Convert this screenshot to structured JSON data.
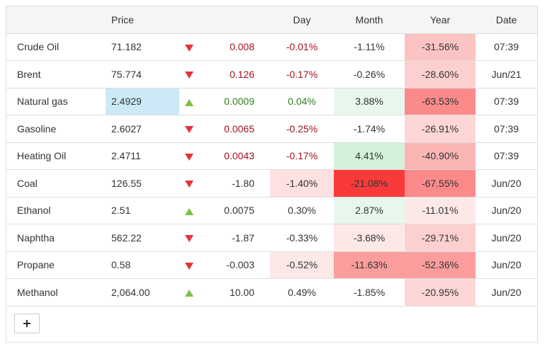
{
  "columns": {
    "name": "",
    "price": "Price",
    "day": "Day",
    "month": "Month",
    "year": "Year",
    "date": "Date"
  },
  "rows": [
    {
      "name": "Crude Oil",
      "price": "71.182",
      "price_bg": "",
      "direction": "down",
      "change": "0.008",
      "change_color": "#a3111b",
      "day": "-0.01%",
      "day_bg": "",
      "day_color": "#a3111b",
      "month": "-1.11%",
      "month_bg": "",
      "month_color": "#333333",
      "year": "-31.56%",
      "year_bg": "#fcc3c3",
      "date": "07:39"
    },
    {
      "name": "Brent",
      "price": "75.774",
      "price_bg": "",
      "direction": "down",
      "change": "0.126",
      "change_color": "#a3111b",
      "day": "-0.17%",
      "day_bg": "",
      "day_color": "#a3111b",
      "month": "-0.26%",
      "month_bg": "",
      "month_color": "#333333",
      "year": "-28.60%",
      "year_bg": "#fdd0d0",
      "date": "Jun/21"
    },
    {
      "name": "Natural gas",
      "price": "2.4929",
      "price_bg": "#cde8f6",
      "direction": "up",
      "change": "0.0009",
      "change_color": "#2e7d1e",
      "day": "0.04%",
      "day_bg": "",
      "day_color": "#2e7d1e",
      "month": "3.88%",
      "month_bg": "#e8f7eb",
      "month_color": "#333333",
      "year": "-63.53%",
      "year_bg": "#fb8b8b",
      "date": "07:39"
    },
    {
      "name": "Gasoline",
      "price": "2.6027",
      "price_bg": "",
      "direction": "down",
      "change": "0.0065",
      "change_color": "#a3111b",
      "day": "-0.25%",
      "day_bg": "",
      "day_color": "#a3111b",
      "month": "-1.74%",
      "month_bg": "",
      "month_color": "#333333",
      "year": "-26.91%",
      "year_bg": "#fdd6d6",
      "date": "07:39"
    },
    {
      "name": "Heating Oil",
      "price": "2.4711",
      "price_bg": "",
      "direction": "down",
      "change": "0.0043",
      "change_color": "#a3111b",
      "day": "-0.17%",
      "day_bg": "",
      "day_color": "#a3111b",
      "month": "4.41%",
      "month_bg": "#d4f2da",
      "month_color": "#333333",
      "year": "-40.90%",
      "year_bg": "#fcb5b5",
      "date": "07:39"
    },
    {
      "name": "Coal",
      "price": "126.55",
      "price_bg": "",
      "direction": "down",
      "change": "-1.80",
      "change_color": "#333333",
      "day": "-1.40%",
      "day_bg": "#fde0e0",
      "day_color": "#333333",
      "month": "-21.08%",
      "month_bg": "#fa3a3a",
      "month_color": "#333333",
      "year": "-67.55%",
      "year_bg": "#fb8b8b",
      "date": "Jun/20"
    },
    {
      "name": "Ethanol",
      "price": "2.51",
      "price_bg": "",
      "direction": "up",
      "change": "0.0075",
      "change_color": "#333333",
      "day": "0.30%",
      "day_bg": "",
      "day_color": "#333333",
      "month": "2.87%",
      "month_bg": "#e8f7eb",
      "month_color": "#333333",
      "year": "-11.01%",
      "year_bg": "#fde8e8",
      "date": "Jun/20"
    },
    {
      "name": "Naphtha",
      "price": "562.22",
      "price_bg": "",
      "direction": "down",
      "change": "-1.87",
      "change_color": "#333333",
      "day": "-0.33%",
      "day_bg": "",
      "day_color": "#333333",
      "month": "-3.68%",
      "month_bg": "#fde8e8",
      "month_color": "#333333",
      "year": "-29.71%",
      "year_bg": "#fdd0d0",
      "date": "Jun/20"
    },
    {
      "name": "Propane",
      "price": "0.58",
      "price_bg": "",
      "direction": "down",
      "change": "-0.003",
      "change_color": "#333333",
      "day": "-0.52%",
      "day_bg": "#fde8e8",
      "day_color": "#333333",
      "month": "-11.63%",
      "month_bg": "#fb9d9d",
      "month_color": "#333333",
      "year": "-52.36%",
      "year_bg": "#fb9d9d",
      "date": "Jun/20"
    },
    {
      "name": "Methanol",
      "price": "2,064.00",
      "price_bg": "",
      "direction": "up",
      "change": "10.00",
      "change_color": "#333333",
      "day": "0.49%",
      "day_bg": "",
      "day_color": "#333333",
      "month": "-1.85%",
      "month_bg": "",
      "month_color": "#333333",
      "year": "-20.95%",
      "year_bg": "#fdd6d6",
      "date": "Jun/20"
    }
  ],
  "add_button": {
    "label": "+"
  }
}
